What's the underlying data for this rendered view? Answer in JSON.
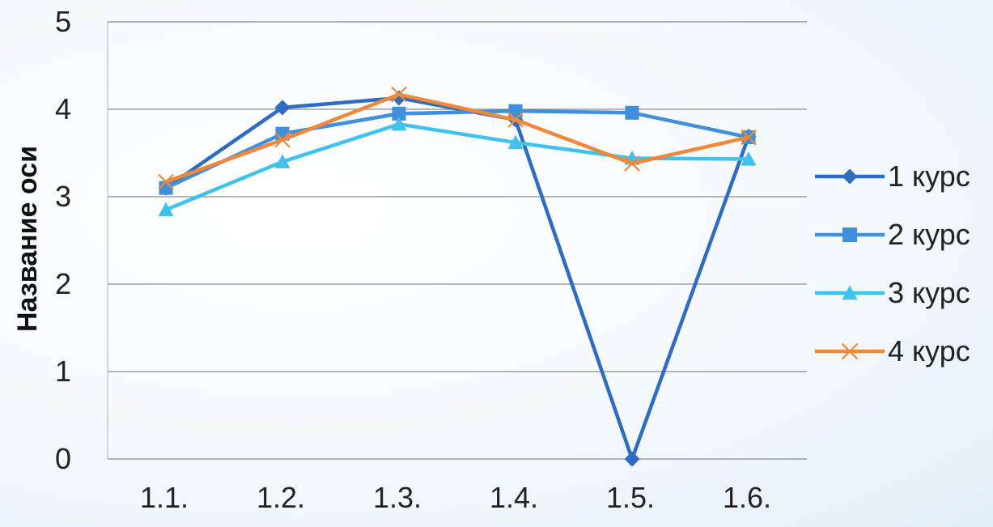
{
  "chart_data": {
    "type": "line",
    "title": "",
    "xlabel": "",
    "ylabel": "Название оси",
    "categories": [
      "1.1.",
      "1.2.",
      "1.3.",
      "1.4.",
      "1.5.",
      "1.6."
    ],
    "ylim": [
      0,
      5
    ],
    "yticks": [
      0,
      1,
      2,
      3,
      4,
      5
    ],
    "grid": "horizontal",
    "legend": "right",
    "series": [
      {
        "name": "1 курс",
        "values": [
          3.1,
          4.02,
          4.13,
          3.88,
          0,
          3.69
        ],
        "color": "#2e6cc4",
        "marker": "diamond"
      },
      {
        "name": "2 курс",
        "values": [
          3.1,
          3.72,
          3.95,
          3.98,
          3.96,
          3.68
        ],
        "color": "#3f8fdc",
        "marker": "square"
      },
      {
        "name": "3 курс",
        "values": [
          2.85,
          3.4,
          3.83,
          3.62,
          3.44,
          3.43
        ],
        "color": "#3fc3ee",
        "marker": "triangle"
      },
      {
        "name": "4 курс",
        "values": [
          3.17,
          3.65,
          4.17,
          3.88,
          3.38,
          3.68
        ],
        "color": "#f0883a",
        "marker": "x"
      }
    ]
  }
}
